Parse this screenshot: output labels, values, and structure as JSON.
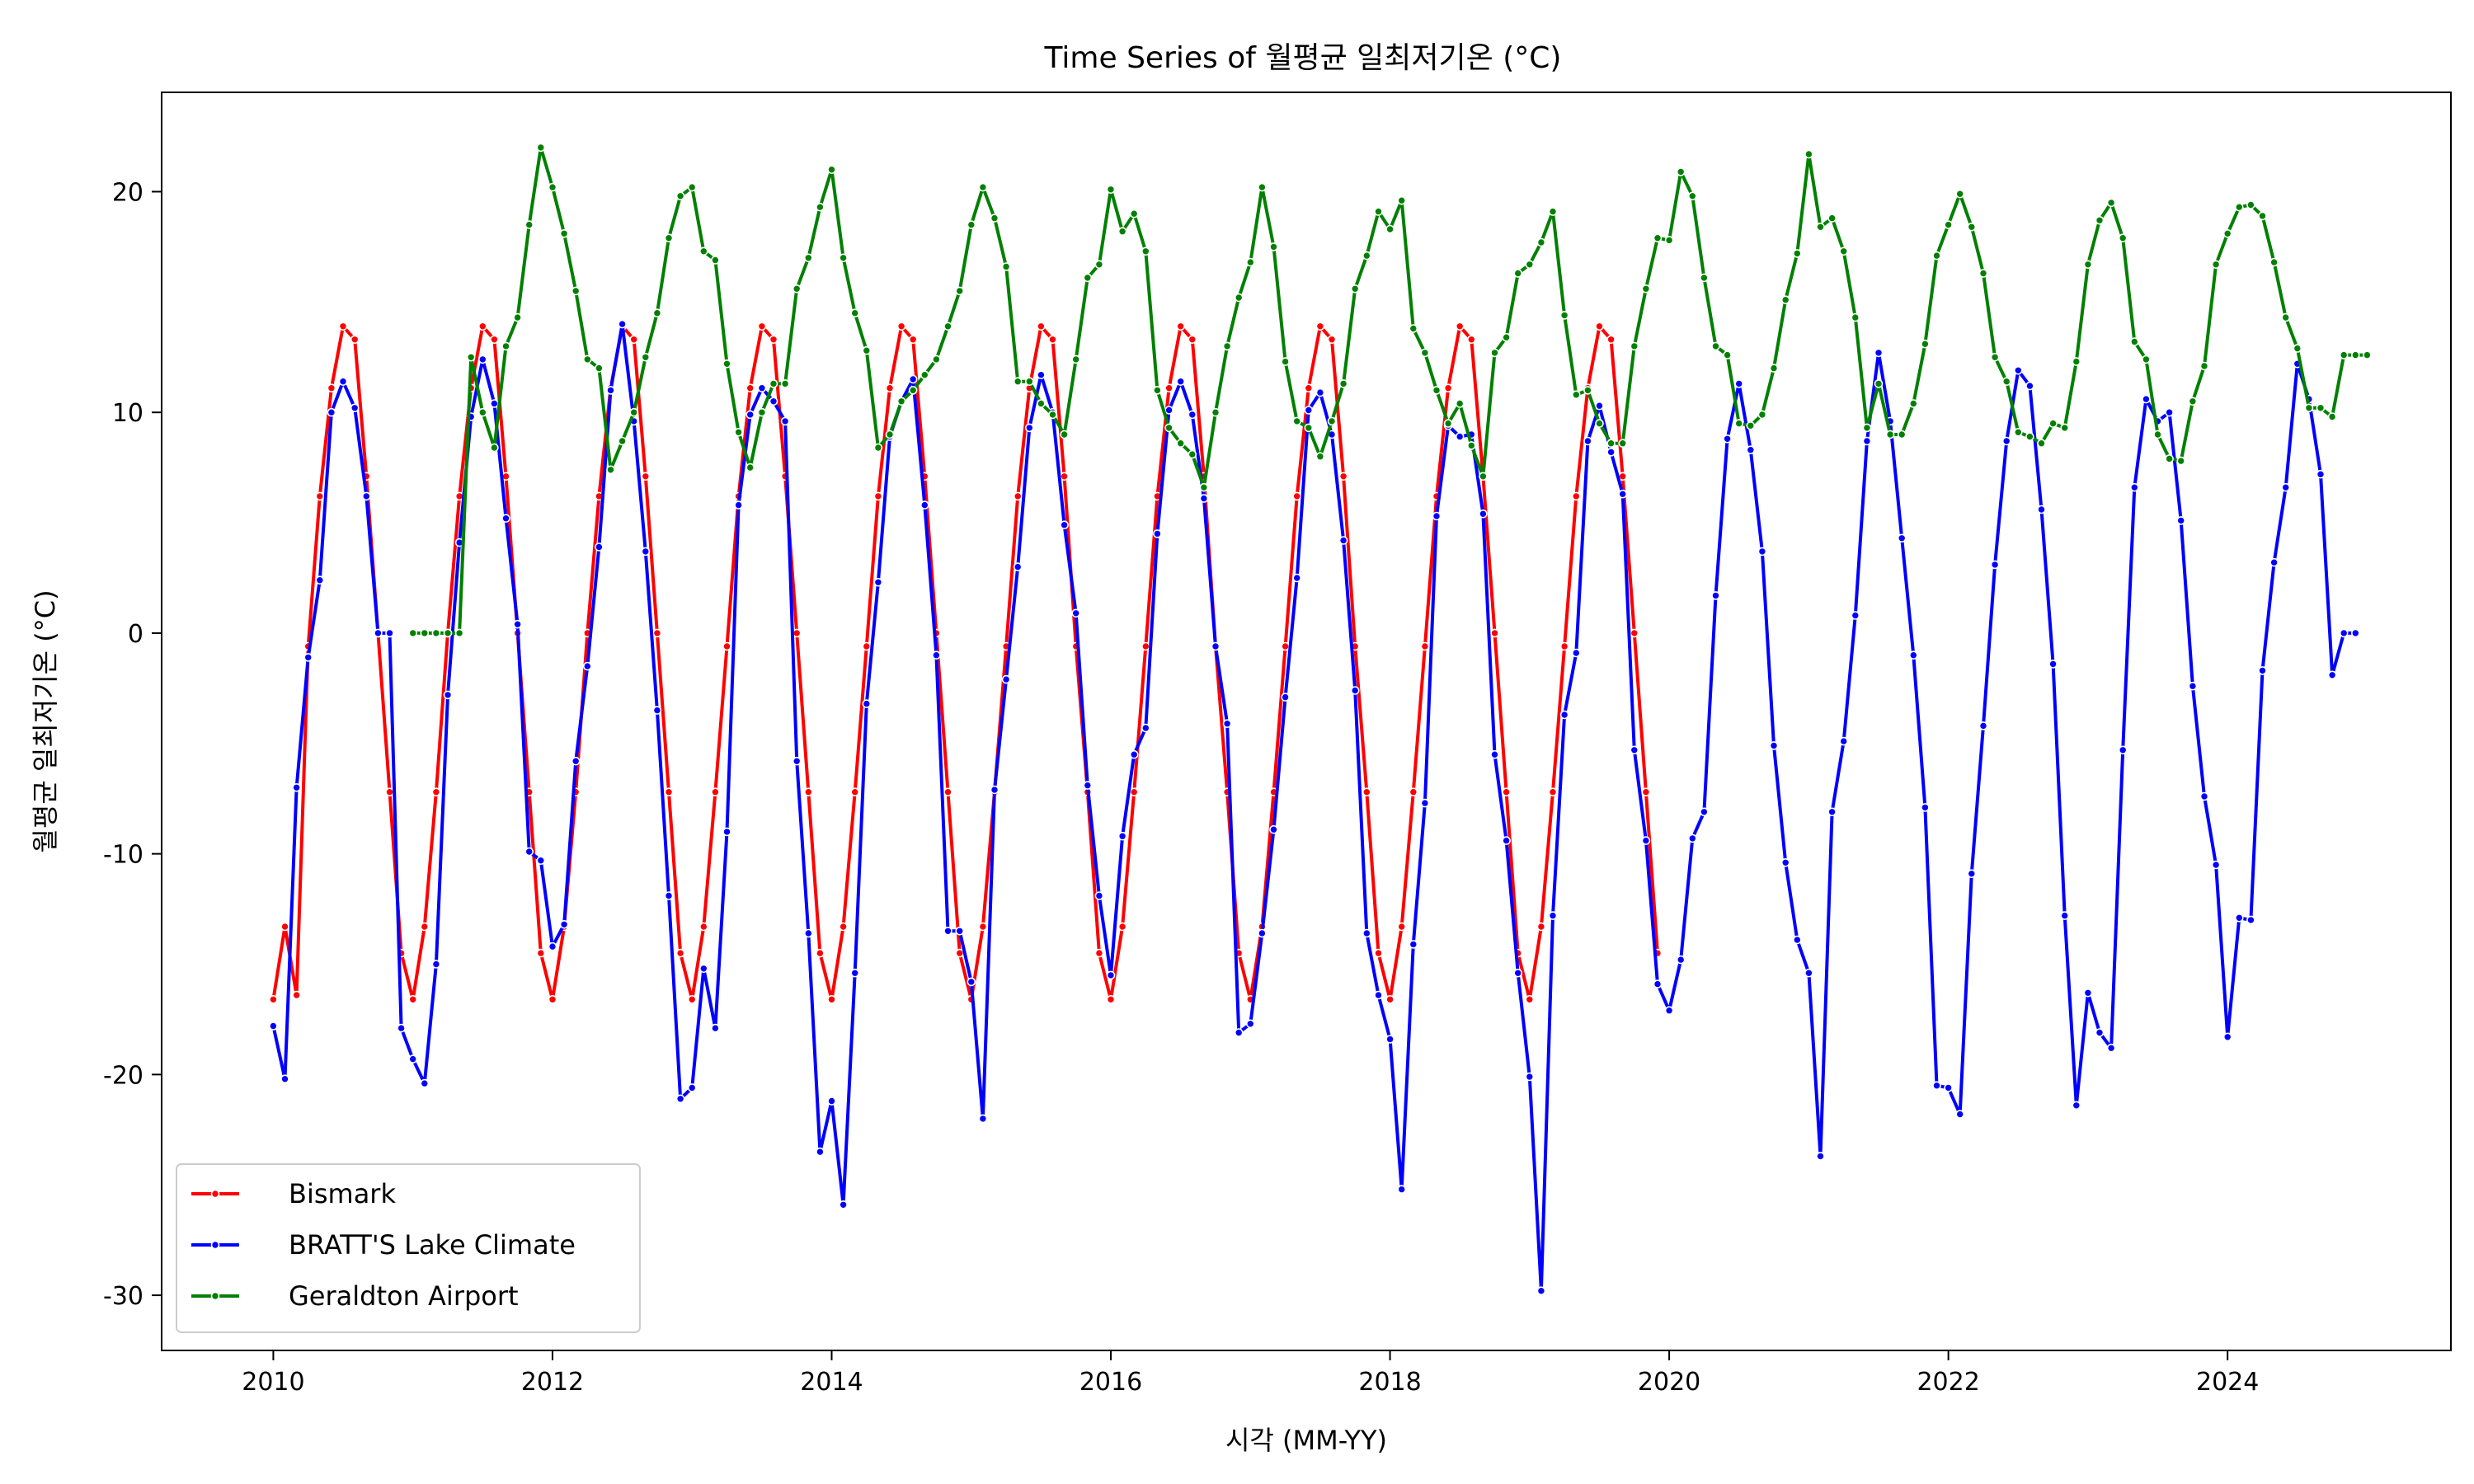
{
  "chart_data": {
    "type": "line",
    "title": "Time Series of 월평균 일최저기온 (°C)",
    "xlabel": "시각 (MM-YY)",
    "ylabel": "월평균 일최저기온 (°C)",
    "xlim": [
      2009.2,
      2025.6
    ],
    "ylim": [
      -32.5,
      24.5
    ],
    "x_ticks": [
      2010,
      2012,
      2014,
      2016,
      2018,
      2020,
      2022,
      2024
    ],
    "x_tick_labels": [
      "2010",
      "2012",
      "2014",
      "2016",
      "2018",
      "2020",
      "2022",
      "2024"
    ],
    "y_ticks": [
      -30,
      -20,
      -10,
      0,
      10,
      20
    ],
    "y_tick_labels": [
      "-30",
      "-20",
      "-10",
      "0",
      "10",
      "20"
    ],
    "grid": false,
    "legend_position": "lower-left",
    "series": [
      {
        "name": "Bismark",
        "color": "#ff0000",
        "x_start": 2010.0,
        "values": [
          -16.6,
          -13.3,
          -16.4,
          -0.6,
          6.2,
          11.1,
          13.9,
          13.3,
          7.1,
          0.0,
          -7.2,
          -14.5,
          -16.6,
          -13.3,
          -7.2,
          0.0,
          6.2,
          11.1,
          13.9,
          13.3,
          7.1,
          0.0,
          -7.2,
          -14.5,
          -16.6,
          -13.3,
          -7.2,
          0.0,
          6.2,
          11.1,
          13.9,
          13.3,
          7.1,
          0.0,
          -7.2,
          -14.5,
          -16.6,
          -13.3,
          -7.2,
          -0.6,
          6.2,
          11.1,
          13.9,
          13.3,
          7.1,
          0.0,
          -7.2,
          -14.5,
          -16.6,
          -13.3,
          -7.2,
          -0.6,
          6.2,
          11.1,
          13.9,
          13.3,
          7.1,
          0.0,
          -7.2,
          -14.5,
          -16.6,
          -13.3,
          -7.2,
          -0.6,
          6.2,
          11.1,
          13.9,
          13.3,
          7.1,
          -0.6,
          -7.2,
          -14.5,
          -16.6,
          -13.3,
          -7.2,
          -0.6,
          6.2,
          11.1,
          13.9,
          13.3,
          7.1,
          -0.6,
          -7.2,
          -14.5,
          -16.6,
          -13.3,
          -7.2,
          -0.6,
          6.2,
          11.1,
          13.9,
          13.3,
          7.1,
          -0.6,
          -7.2,
          -14.5,
          -16.6,
          -13.3,
          -7.2,
          -0.6,
          6.2,
          11.1,
          13.9,
          13.3,
          7.1,
          0.0,
          -7.2,
          -14.5,
          -16.6,
          -13.3,
          -7.2,
          -0.6,
          6.2,
          11.1,
          13.9,
          13.3,
          7.1,
          0.0,
          -7.2,
          -14.5
        ]
      },
      {
        "name": "BRATT'S Lake Climate",
        "color": "#0000ff",
        "x_start": 2010.0,
        "values": [
          -17.8,
          -20.2,
          -7.0,
          -1.1,
          2.4,
          10.0,
          11.4,
          10.2,
          6.2,
          0.0,
          0.0,
          -17.9,
          -19.3,
          -20.4,
          -15.0,
          -2.8,
          4.1,
          9.8,
          12.4,
          10.4,
          5.2,
          0.4,
          -9.9,
          -10.3,
          -14.2,
          -13.2,
          -5.8,
          -1.5,
          3.9,
          11.0,
          14.0,
          9.6,
          3.7,
          -3.5,
          -11.9,
          -21.1,
          -20.6,
          -15.2,
          -17.9,
          -9.0,
          5.8,
          9.9,
          11.1,
          10.5,
          9.6,
          -5.8,
          -13.6,
          -23.5,
          -21.2,
          -25.9,
          -15.4,
          -3.2,
          2.3,
          8.9,
          10.5,
          11.5,
          5.8,
          -1.0,
          -13.5,
          -13.5,
          -15.8,
          -22.0,
          -7.1,
          -2.1,
          3.0,
          9.3,
          11.7,
          10.0,
          4.9,
          0.9,
          -6.9,
          -11.9,
          -15.5,
          -9.2,
          -5.5,
          -4.3,
          4.5,
          10.1,
          11.4,
          9.9,
          6.1,
          -0.6,
          -4.1,
          -18.1,
          -17.7,
          -13.6,
          -8.9,
          -2.9,
          2.5,
          10.1,
          10.9,
          9.0,
          4.2,
          -2.6,
          -13.6,
          -16.4,
          -18.4,
          -25.2,
          -14.1,
          -7.7,
          5.3,
          9.4,
          8.9,
          9.0,
          5.4,
          -5.5,
          -9.4,
          -15.4,
          -20.1,
          -29.8,
          -12.8,
          -3.7,
          -0.9,
          8.7,
          10.3,
          8.2,
          6.3,
          -5.3,
          -9.4,
          -15.9,
          -17.1,
          -14.8,
          -9.3,
          -8.1,
          1.7,
          8.8,
          11.3,
          8.3,
          3.7,
          -5.1,
          -10.4,
          -13.9,
          -15.4,
          -23.7,
          -8.1,
          -4.9,
          0.8,
          8.7,
          12.7,
          9.6,
          4.3,
          -1.0,
          -7.9,
          -20.5,
          -20.6,
          -21.8,
          -10.9,
          -4.2,
          3.1,
          8.7,
          11.9,
          11.2,
          5.6,
          -1.4,
          -12.8,
          -21.4,
          -16.3,
          -18.1,
          -18.8,
          -5.3,
          6.6,
          10.6,
          9.6,
          10.0,
          5.1,
          -2.4,
          -7.4,
          -10.5,
          -18.3,
          -12.9,
          -13.0,
          -1.7,
          3.2,
          6.6,
          12.2,
          10.6,
          7.2,
          -1.9,
          0.0,
          0.0
        ]
      },
      {
        "name": "Geraldton Airport",
        "color": "#008000",
        "x_start": 2011.0,
        "values": [
          0.0,
          0.0,
          0.0,
          0.0,
          0.0,
          12.5,
          10.0,
          8.4,
          13.0,
          14.3,
          18.5,
          22.0,
          20.2,
          18.1,
          15.5,
          12.4,
          12.0,
          7.4,
          8.7,
          10.0,
          12.5,
          14.5,
          17.9,
          19.8,
          20.2,
          17.3,
          16.9,
          12.2,
          9.1,
          7.5,
          10.0,
          11.3,
          11.3,
          15.6,
          17.0,
          19.3,
          21.0,
          17.0,
          14.5,
          12.8,
          8.4,
          9.0,
          10.5,
          11.0,
          11.7,
          12.4,
          13.9,
          15.5,
          18.5,
          20.2,
          18.8,
          16.6,
          11.4,
          11.4,
          10.4,
          9.9,
          9.0,
          12.4,
          16.1,
          16.7,
          20.1,
          18.2,
          19.0,
          17.3,
          11.0,
          9.3,
          8.6,
          8.1,
          6.6,
          10.0,
          13.0,
          15.2,
          16.8,
          20.2,
          17.5,
          12.3,
          9.6,
          9.3,
          8.0,
          9.6,
          11.3,
          15.6,
          17.1,
          19.1,
          18.3,
          19.6,
          13.8,
          12.7,
          11.0,
          9.5,
          10.4,
          8.5,
          7.1,
          12.7,
          13.4,
          16.3,
          16.7,
          17.7,
          19.1,
          14.4,
          10.8,
          11.0,
          9.5,
          8.6,
          8.6,
          13.0,
          15.6,
          17.9,
          17.8,
          20.9,
          19.8,
          16.1,
          13.0,
          12.6,
          9.5,
          9.4,
          9.9,
          12.0,
          15.1,
          17.2,
          21.7,
          18.4,
          18.8,
          17.3,
          14.3,
          9.3,
          11.3,
          9.0,
          9.0,
          10.4,
          13.1,
          17.1,
          18.5,
          19.9,
          18.4,
          16.3,
          12.5,
          11.4,
          9.1,
          8.9,
          8.6,
          9.5,
          9.3,
          12.3,
          16.7,
          18.7,
          19.5,
          17.9,
          13.2,
          12.4,
          9.0,
          7.9,
          7.8,
          10.5,
          12.1,
          16.7,
          18.1,
          19.3,
          19.4,
          18.9,
          16.8,
          14.3,
          12.9,
          10.2,
          10.2,
          9.8,
          12.6,
          12.6,
          12.6
        ]
      }
    ]
  }
}
